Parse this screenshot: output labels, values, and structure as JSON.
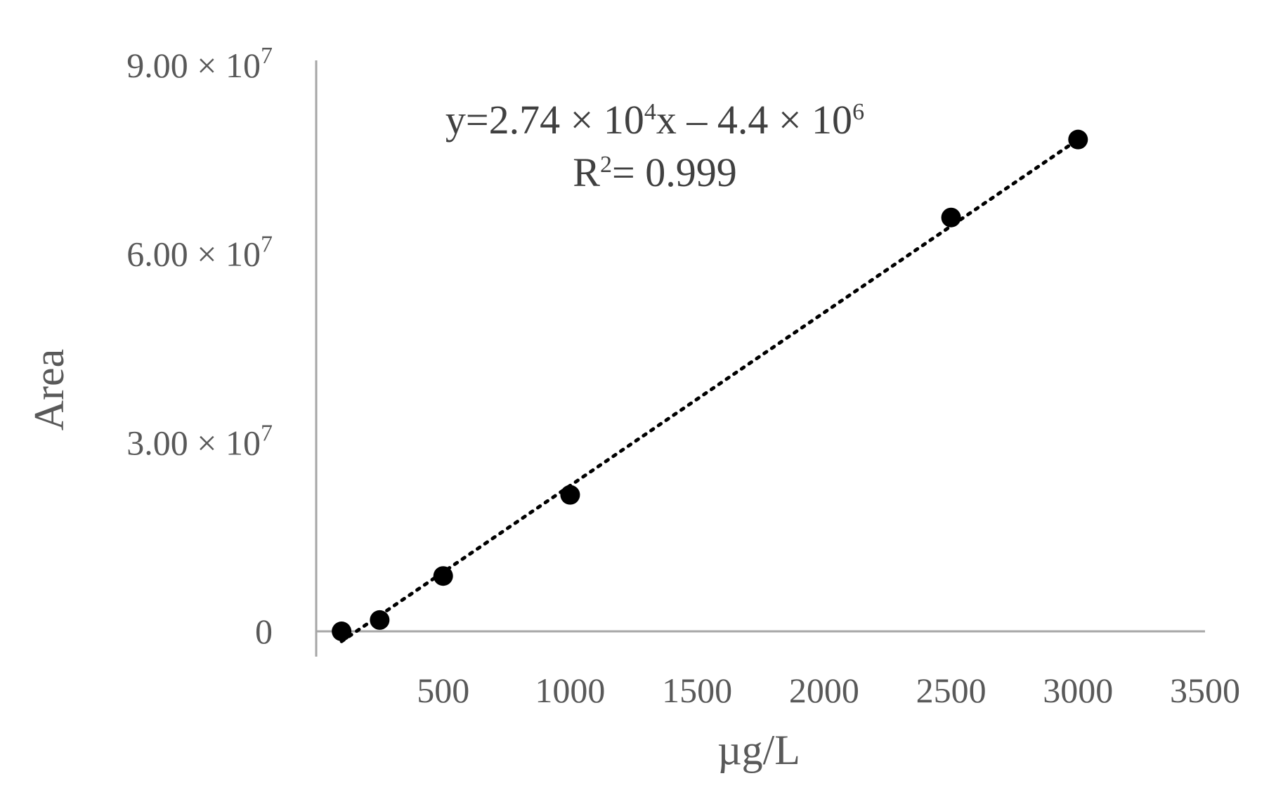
{
  "chart_data": {
    "type": "scatter",
    "xlabel": "µg/L",
    "ylabel": "Area",
    "xlim": [
      0,
      3500
    ],
    "ylim": [
      0,
      90000000
    ],
    "x_ticks": [
      {
        "value": 500,
        "label": "500"
      },
      {
        "value": 1000,
        "label": "1000"
      },
      {
        "value": 1500,
        "label": "1500"
      },
      {
        "value": 2000,
        "label": "2000"
      },
      {
        "value": 2500,
        "label": "2500"
      },
      {
        "value": 3000,
        "label": "3000"
      },
      {
        "value": 3500,
        "label": "3500"
      }
    ],
    "y_ticks": [
      {
        "value": 0,
        "mantissa": "0",
        "exponent": ""
      },
      {
        "value": 30000000,
        "mantissa": "3.00 × 10",
        "exponent": "7"
      },
      {
        "value": 60000000,
        "mantissa": "6.00 × 10",
        "exponent": "7"
      },
      {
        "value": 90000000,
        "mantissa": "9.00 × 10",
        "exponent": "7"
      }
    ],
    "series": [
      {
        "x": [
          100,
          250,
          500,
          1000,
          2500,
          3000
        ],
        "y": [
          0,
          1800000,
          8800000,
          21700000,
          65800000,
          78200000
        ],
        "color": "#000000"
      }
    ],
    "trendline": {
      "x_range": [
        100,
        3000
      ],
      "y_range": [
        -1600000,
        78200000
      ],
      "style": "dotted"
    },
    "equation": {
      "line1_parts": [
        "y=2.74 × 10",
        "4",
        "x – 4.4 × 10",
        "6"
      ],
      "line2_parts": [
        "R",
        "2",
        "= 0.999"
      ]
    },
    "grid": false
  }
}
